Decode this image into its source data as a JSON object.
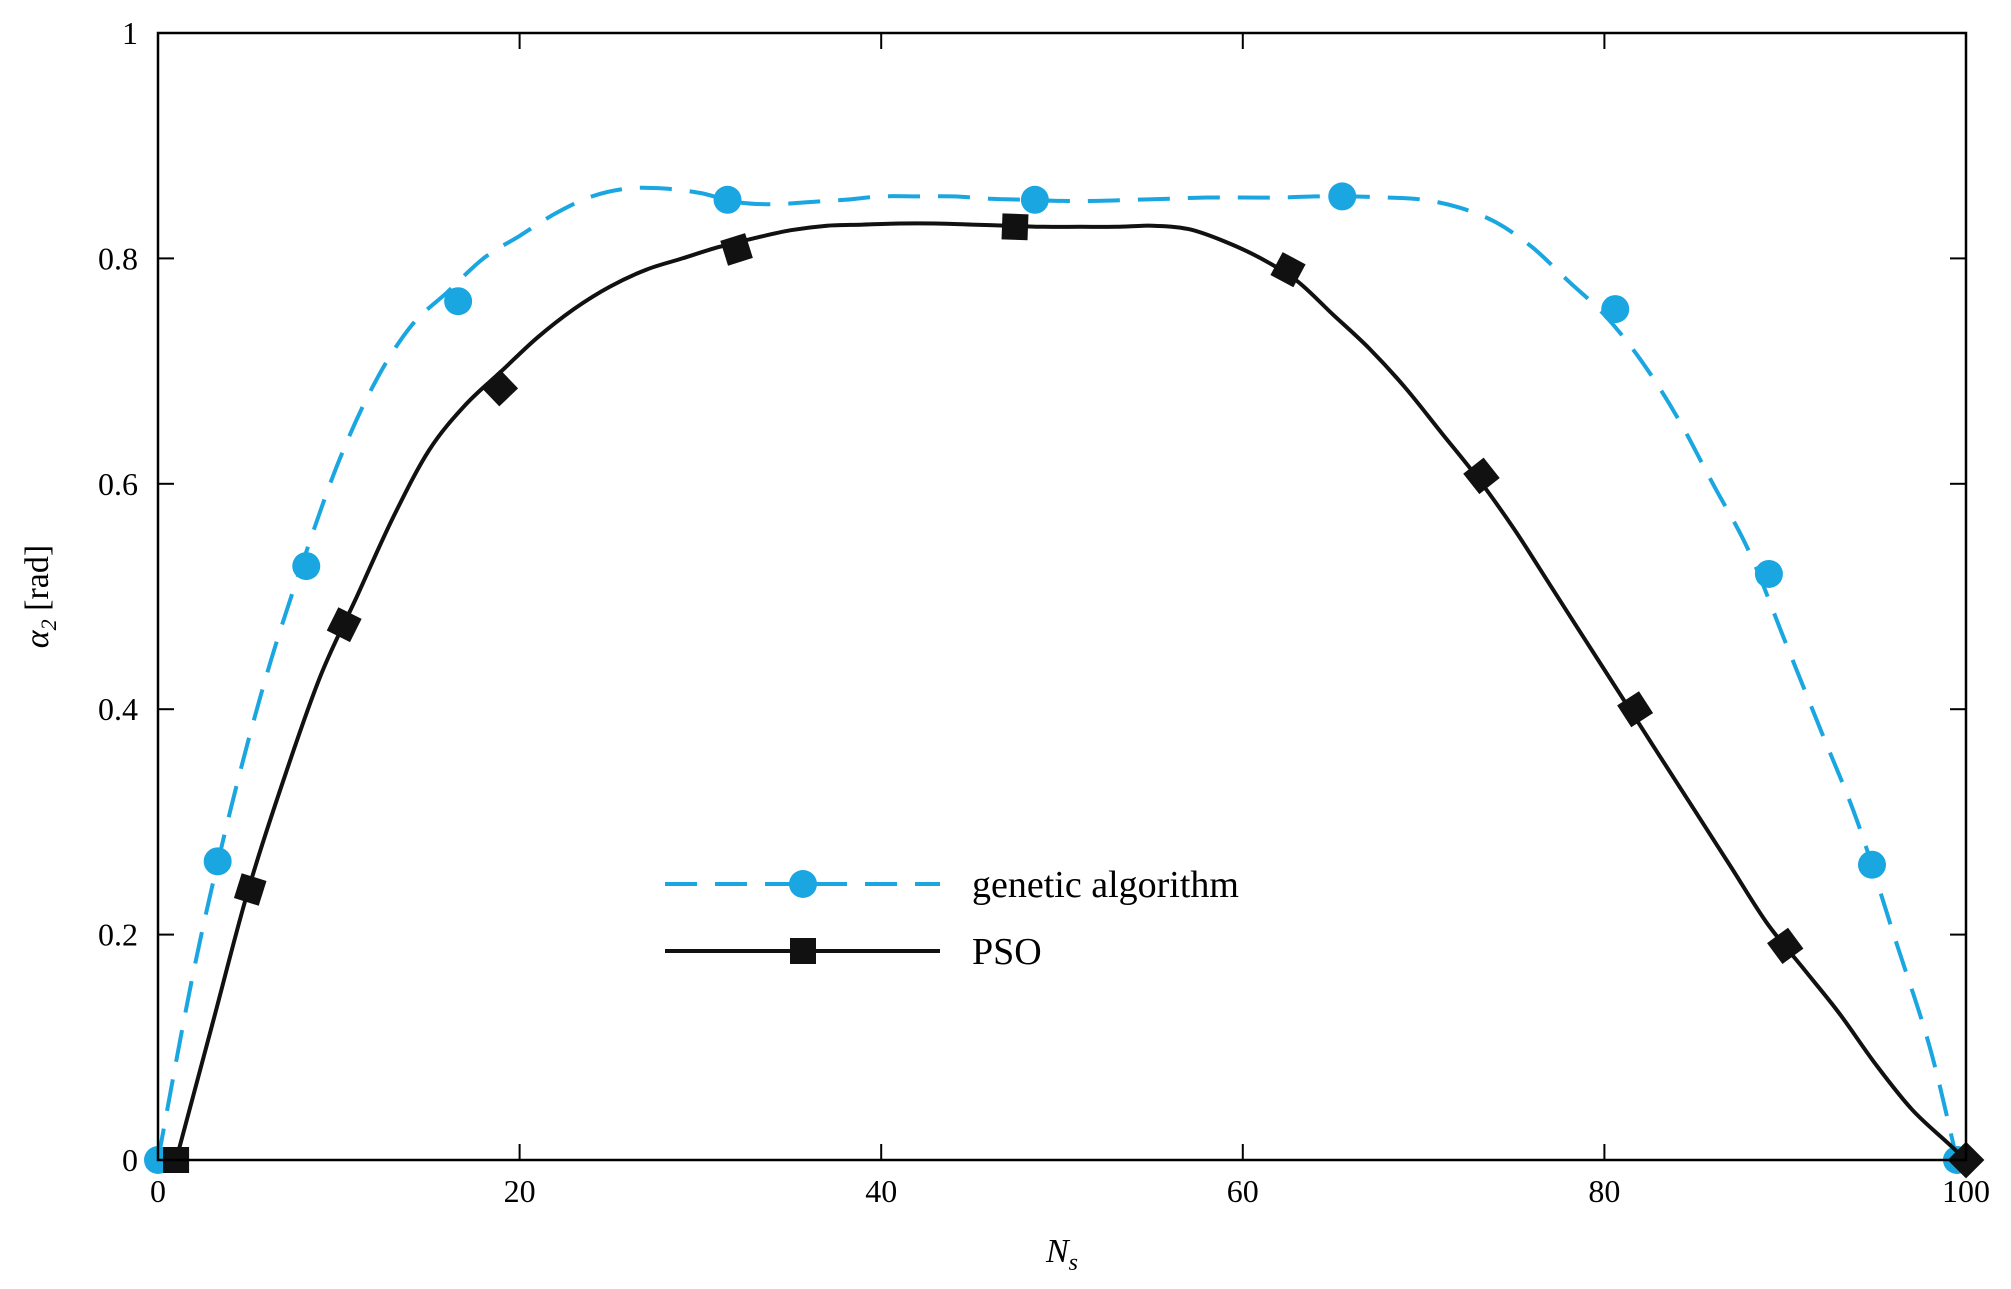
{
  "chart_data": {
    "type": "line",
    "title": "",
    "xlabel_main": "N",
    "xlabel_sub": "s",
    "ylabel_main": "α",
    "ylabel_sub": "2",
    "ylabel_unit": " [rad]",
    "xlim": [
      0,
      100
    ],
    "ylim": [
      0,
      1
    ],
    "xticks": [
      0,
      20,
      40,
      60,
      80,
      100
    ],
    "yticks": [
      0,
      0.2,
      0.4,
      0.6,
      0.8,
      1
    ],
    "xtick_labels": [
      "0",
      "20",
      "40",
      "60",
      "80",
      "100"
    ],
    "ytick_labels": [
      "0",
      "0.2",
      "0.4",
      "0.6",
      "0.8",
      "1"
    ],
    "grid": false,
    "legend_position": "center-left",
    "series": [
      {
        "name": "genetic algorithm",
        "color": "#1aa6e0",
        "line_style": "dashed",
        "marker": "circle",
        "curve_x": [
          0,
          2,
          4,
          6,
          8,
          10,
          12,
          14,
          16,
          18,
          20,
          22,
          24,
          26,
          28,
          30,
          32,
          34,
          36,
          38,
          40,
          42,
          44,
          46,
          48,
          50,
          52,
          54,
          56,
          58,
          60,
          62,
          64,
          66,
          68,
          70,
          72,
          74,
          76,
          78,
          80,
          82,
          84,
          86,
          88,
          90,
          92,
          94,
          96,
          98,
          99.5
        ],
        "curve_y": [
          0,
          0.17,
          0.31,
          0.43,
          0.53,
          0.62,
          0.69,
          0.74,
          0.77,
          0.8,
          0.82,
          0.84,
          0.855,
          0.862,
          0.862,
          0.858,
          0.85,
          0.848,
          0.85,
          0.852,
          0.855,
          0.855,
          0.855,
          0.853,
          0.852,
          0.851,
          0.851,
          0.852,
          0.853,
          0.854,
          0.854,
          0.854,
          0.855,
          0.855,
          0.854,
          0.852,
          0.845,
          0.832,
          0.81,
          0.78,
          0.75,
          0.71,
          0.66,
          0.6,
          0.54,
          0.46,
          0.38,
          0.3,
          0.2,
          0.1,
          0
        ],
        "marker_x": [
          0,
          3.3,
          8.2,
          16.6,
          31.5,
          48.5,
          65.5,
          80.6,
          89.1,
          94.8,
          99.5
        ],
        "marker_y": [
          0,
          0.265,
          0.527,
          0.762,
          0.852,
          0.852,
          0.855,
          0.755,
          0.52,
          0.262,
          0
        ]
      },
      {
        "name": "PSO",
        "color": "#111111",
        "line_style": "solid",
        "marker": "square",
        "curve_x": [
          1,
          3,
          5,
          7,
          9,
          11,
          13,
          15,
          17,
          19,
          21,
          23,
          25,
          27,
          29,
          31,
          33,
          35,
          37,
          39,
          41,
          43,
          45,
          47,
          49,
          51,
          53,
          55,
          57,
          59,
          61,
          63,
          65,
          67,
          69,
          71,
          73,
          75,
          77,
          79,
          81,
          83,
          85,
          87,
          89,
          91,
          93,
          95,
          97,
          99,
          100
        ],
        "curve_y": [
          0,
          0.12,
          0.24,
          0.34,
          0.43,
          0.5,
          0.57,
          0.63,
          0.67,
          0.7,
          0.73,
          0.755,
          0.775,
          0.79,
          0.8,
          0.81,
          0.818,
          0.825,
          0.829,
          0.83,
          0.831,
          0.831,
          0.83,
          0.829,
          0.828,
          0.828,
          0.828,
          0.829,
          0.826,
          0.815,
          0.8,
          0.78,
          0.75,
          0.72,
          0.685,
          0.645,
          0.605,
          0.56,
          0.51,
          0.46,
          0.41,
          0.36,
          0.31,
          0.26,
          0.21,
          0.17,
          0.13,
          0.085,
          0.045,
          0.015,
          0
        ],
        "marker_x": [
          1,
          5.1,
          10.3,
          18.9,
          32,
          47.4,
          62.5,
          73.2,
          81.7,
          90,
          100
        ],
        "marker_y": [
          0,
          0.24,
          0.475,
          0.685,
          0.808,
          0.828,
          0.79,
          0.607,
          0.4,
          0.19,
          0
        ]
      }
    ]
  }
}
